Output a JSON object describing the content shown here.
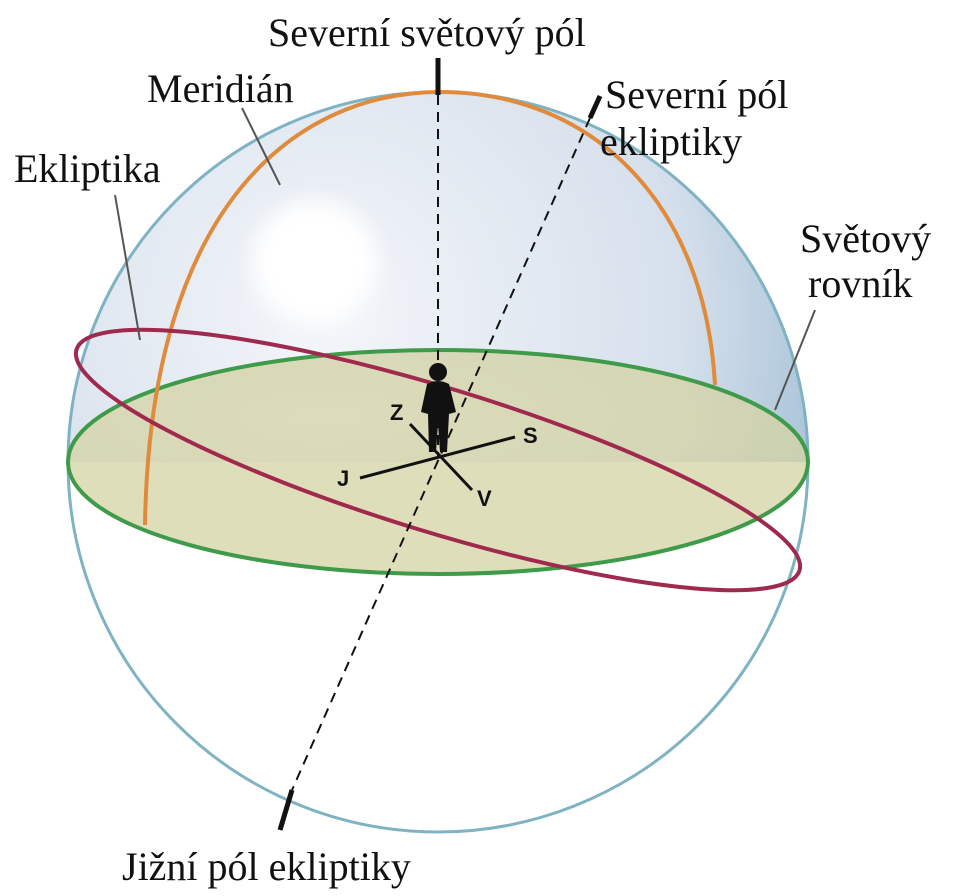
{
  "labels": {
    "north_celestial_pole": "Severní světový pól",
    "meridian": "Meridián",
    "north_ecliptic_pole": [
      "Severní pól",
      "ekliptiky"
    ],
    "ecliptic": "Ekliptika",
    "celestial_equator": [
      "Světový",
      "rovník"
    ],
    "south_ecliptic_pole": "Jižní pól ekliptiky"
  },
  "directions": {
    "north": "S",
    "south": "J",
    "east": "V",
    "west": "Z"
  }
}
